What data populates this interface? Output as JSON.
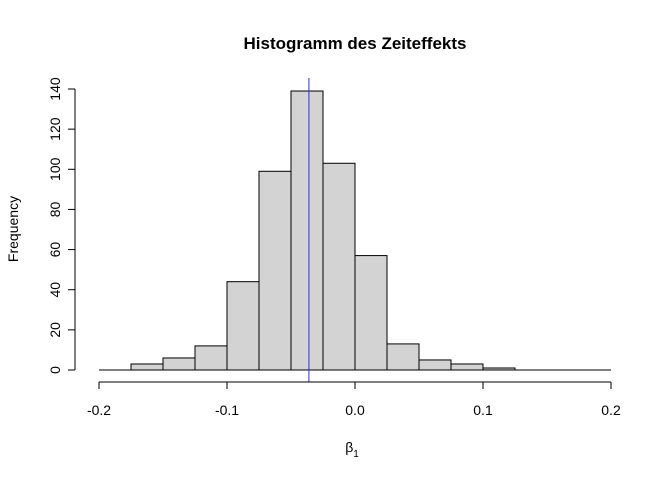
{
  "chart_data": {
    "type": "bar",
    "title": "Histogramm des Zeiteffekts",
    "xlabel_base": "β",
    "xlabel_sub": "1",
    "ylabel": "Frequency",
    "xlim": [
      -0.2,
      0.2
    ],
    "ylim": [
      0,
      140
    ],
    "x_ticks": [
      -0.2,
      -0.1,
      0.0,
      0.1,
      0.2
    ],
    "x_tick_labels": [
      "-0.2",
      "-0.1",
      "0.0",
      "0.1",
      "0.2"
    ],
    "y_ticks": [
      0,
      20,
      40,
      60,
      80,
      100,
      120,
      140
    ],
    "y_tick_labels": [
      "0",
      "20",
      "40",
      "60",
      "80",
      "100",
      "120",
      "140"
    ],
    "bins": [
      {
        "start": -0.2,
        "end": -0.175,
        "count": 0
      },
      {
        "start": -0.175,
        "end": -0.15,
        "count": 3
      },
      {
        "start": -0.15,
        "end": -0.125,
        "count": 6
      },
      {
        "start": -0.125,
        "end": -0.1,
        "count": 12
      },
      {
        "start": -0.1,
        "end": -0.075,
        "count": 44
      },
      {
        "start": -0.075,
        "end": -0.05,
        "count": 99
      },
      {
        "start": -0.05,
        "end": -0.025,
        "count": 139
      },
      {
        "start": -0.025,
        "end": 0.0,
        "count": 103
      },
      {
        "start": 0.0,
        "end": 0.025,
        "count": 57
      },
      {
        "start": 0.025,
        "end": 0.05,
        "count": 13
      },
      {
        "start": 0.05,
        "end": 0.075,
        "count": 5
      },
      {
        "start": 0.075,
        "end": 0.1,
        "count": 3
      },
      {
        "start": 0.1,
        "end": 0.125,
        "count": 1
      },
      {
        "start": 0.125,
        "end": 0.15,
        "count": 0
      },
      {
        "start": 0.15,
        "end": 0.175,
        "count": 0
      },
      {
        "start": 0.175,
        "end": 0.2,
        "count": 0
      }
    ],
    "reference_line_x": -0.036,
    "colors": {
      "bar_fill": "#d3d3d3",
      "bar_stroke": "#000000",
      "reference_line": "#3333cc"
    },
    "grid": false,
    "legend": "none"
  }
}
